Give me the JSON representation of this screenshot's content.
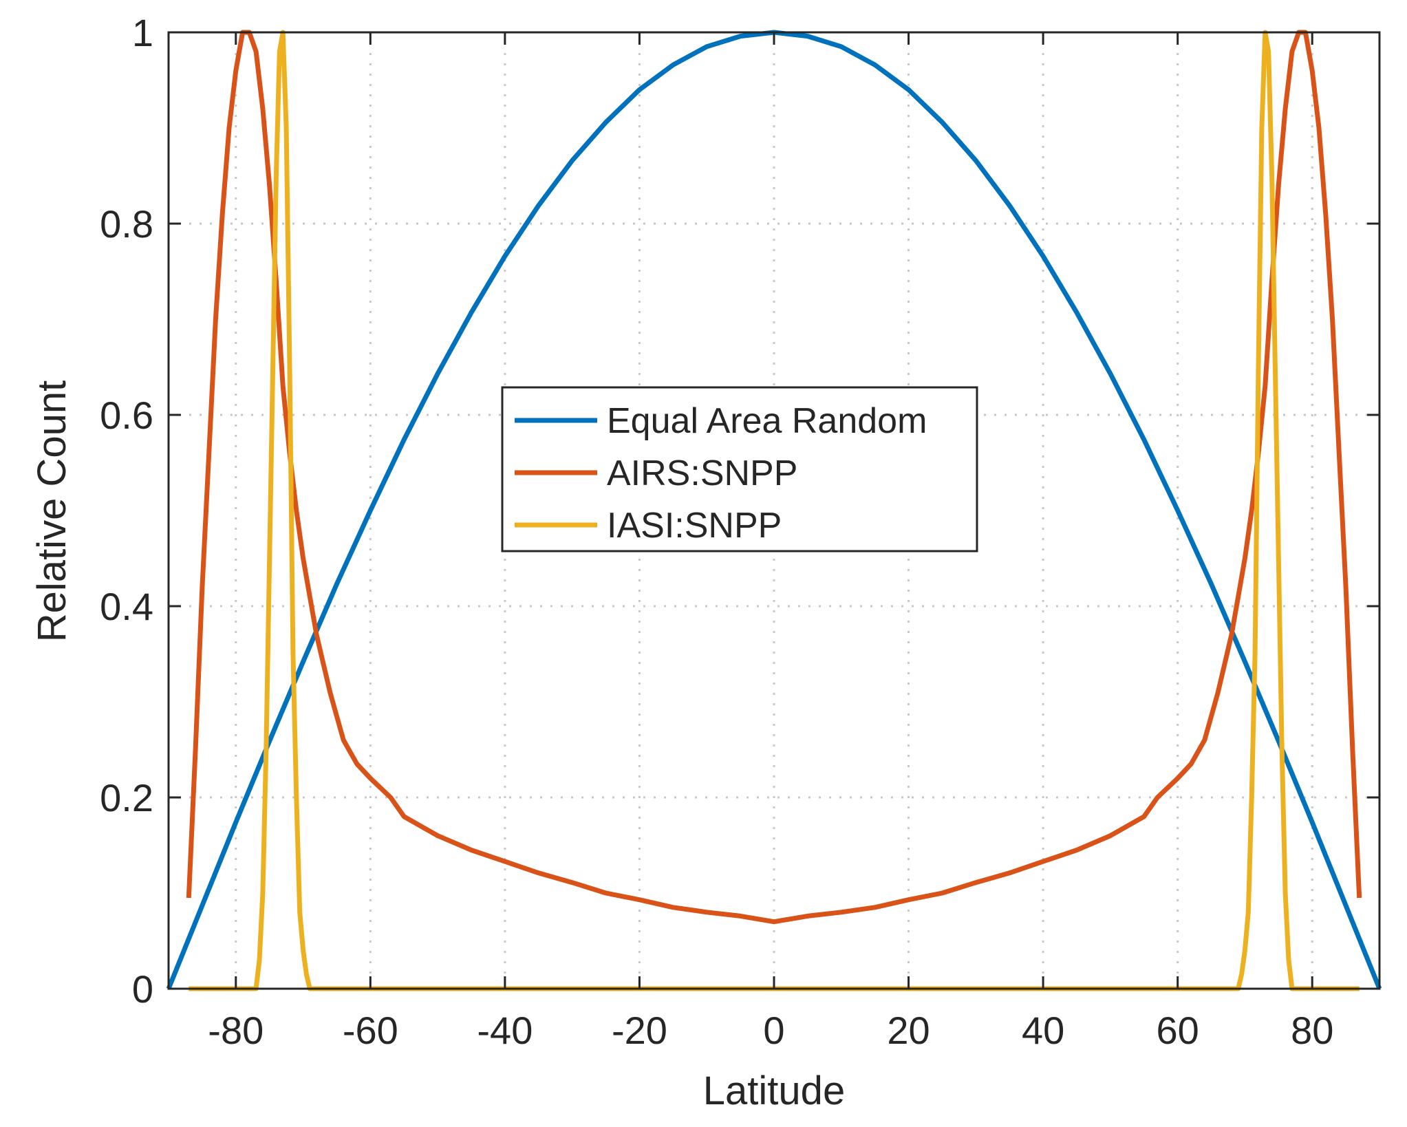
{
  "chart_data": {
    "type": "line",
    "title": "",
    "xlabel": "Latitude",
    "ylabel": "Relative Count",
    "xlim": [
      -90,
      90
    ],
    "ylim": [
      0,
      1
    ],
    "xticks": [
      -80,
      -60,
      -40,
      -20,
      0,
      20,
      40,
      60,
      80
    ],
    "yticks": [
      0,
      0.2,
      0.4,
      0.6,
      0.8,
      1
    ],
    "xtick_labels": [
      "-80",
      "-60",
      "-40",
      "-20",
      "0",
      "20",
      "40",
      "60",
      "80"
    ],
    "ytick_labels": [
      "0",
      "0.2",
      "0.4",
      "0.6",
      "0.8",
      "1"
    ],
    "grid": true,
    "legend_position": "center",
    "series": [
      {
        "name": "Equal Area Random",
        "color": "#0072BD",
        "x": [
          -90,
          -85,
          -80,
          -75,
          -70,
          -65,
          -60,
          -55,
          -50,
          -45,
          -40,
          -35,
          -30,
          -25,
          -20,
          -15,
          -10,
          -5,
          0,
          5,
          10,
          15,
          20,
          25,
          30,
          35,
          40,
          45,
          50,
          55,
          60,
          65,
          70,
          75,
          80,
          85,
          90
        ],
        "y": [
          0,
          0.087,
          0.174,
          0.259,
          0.342,
          0.423,
          0.5,
          0.574,
          0.643,
          0.707,
          0.766,
          0.819,
          0.866,
          0.906,
          0.94,
          0.966,
          0.985,
          0.996,
          1,
          0.996,
          0.985,
          0.966,
          0.94,
          0.906,
          0.866,
          0.819,
          0.766,
          0.707,
          0.643,
          0.574,
          0.5,
          0.423,
          0.342,
          0.259,
          0.174,
          0.087,
          0
        ]
      },
      {
        "name": "AIRS:SNPP",
        "color": "#D95319",
        "x": [
          -87,
          -86,
          -85,
          -84,
          -83,
          -82,
          -81,
          -80,
          -79,
          -78,
          -77,
          -76,
          -75,
          -74,
          -73,
          -72,
          -71,
          -70,
          -69,
          -68,
          -67,
          -66,
          -65,
          -64,
          -62,
          -60,
          -57,
          -55,
          -50,
          -45,
          -40,
          -35,
          -30,
          -25,
          -20,
          -15,
          -10,
          -5,
          0,
          5,
          10,
          15,
          20,
          25,
          30,
          35,
          40,
          45,
          50,
          55,
          57,
          60,
          62,
          64,
          65,
          66,
          67,
          68,
          69,
          70,
          71,
          72,
          73,
          74,
          75,
          76,
          77,
          78,
          79,
          80,
          81,
          82,
          83,
          84,
          85,
          86,
          87
        ],
        "y": [
          0.095,
          0.25,
          0.42,
          0.56,
          0.7,
          0.81,
          0.9,
          0.96,
          1,
          1,
          0.98,
          0.92,
          0.84,
          0.74,
          0.63,
          0.56,
          0.5,
          0.45,
          0.41,
          0.37,
          0.34,
          0.31,
          0.285,
          0.26,
          0.235,
          0.22,
          0.2,
          0.18,
          0.16,
          0.145,
          0.133,
          0.121,
          0.111,
          0.1,
          0.093,
          0.085,
          0.08,
          0.076,
          0.07,
          0.076,
          0.08,
          0.085,
          0.093,
          0.1,
          0.111,
          0.121,
          0.133,
          0.145,
          0.16,
          0.18,
          0.2,
          0.22,
          0.235,
          0.26,
          0.285,
          0.31,
          0.34,
          0.37,
          0.41,
          0.45,
          0.5,
          0.56,
          0.63,
          0.74,
          0.84,
          0.92,
          0.98,
          1,
          1,
          0.96,
          0.9,
          0.81,
          0.7,
          0.56,
          0.42,
          0.25,
          0.095
        ]
      },
      {
        "name": "IASI:SNPP",
        "color": "#EDB120",
        "x": [
          -87,
          -77,
          -76.5,
          -76,
          -75.5,
          -75,
          -74.5,
          -74,
          -73.5,
          -73,
          -72.5,
          -72,
          -71.5,
          -71,
          -70.5,
          -70,
          -69.5,
          -69,
          69,
          69.5,
          70,
          70.5,
          71,
          71.5,
          72,
          72.5,
          73,
          73.5,
          74,
          74.5,
          75,
          75.5,
          76,
          76.5,
          77,
          87
        ],
        "y": [
          0,
          0,
          0.03,
          0.1,
          0.25,
          0.45,
          0.65,
          0.85,
          0.98,
          1,
          0.9,
          0.65,
          0.35,
          0.2,
          0.08,
          0.04,
          0.015,
          0,
          0,
          0.015,
          0.04,
          0.08,
          0.2,
          0.35,
          0.65,
          0.9,
          1,
          0.98,
          0.85,
          0.65,
          0.45,
          0.25,
          0.1,
          0.03,
          0,
          0
        ]
      }
    ]
  }
}
